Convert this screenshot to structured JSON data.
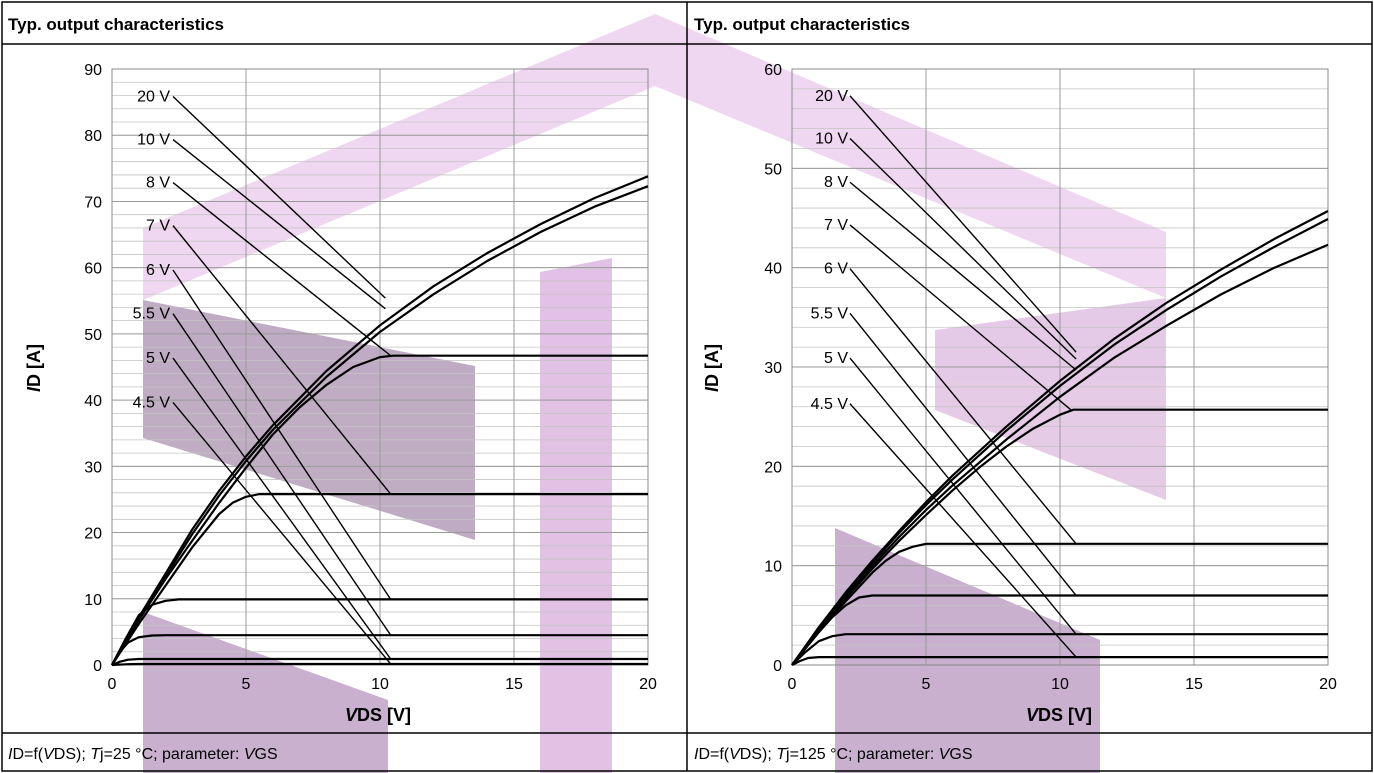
{
  "chart_data": [
    {
      "type": "line",
      "title": "Typ. output characteristics",
      "footer": {
        "main": "D=f(",
        "var": "DS",
        "mid": "); ",
        "tj": "j=25 °C; parameter: ",
        "param": "GS"
      },
      "xlabel": {
        "sym": "V",
        "sub": "DS",
        "unit": " [V]"
      },
      "ylabel": {
        "sym": "I",
        "sub": "D",
        "unit": " [A]"
      },
      "xlim": [
        0,
        20
      ],
      "ylim": [
        0,
        90
      ],
      "xticks": [
        "0",
        "5",
        "10",
        "15",
        "20"
      ],
      "yticks": [
        "0",
        "10",
        "20",
        "30",
        "40",
        "50",
        "60",
        "70",
        "80",
        "90"
      ],
      "xtick_values": [
        0,
        5,
        10,
        15,
        20
      ],
      "ytick_values": [
        0,
        10,
        20,
        30,
        40,
        50,
        60,
        70,
        80,
        90
      ],
      "grid": true,
      "series": [
        {
          "name": "20 V",
          "label_y": 86,
          "target": [
            10.2,
            55.4
          ],
          "x": [
            0,
            1,
            2,
            3,
            4,
            5,
            6,
            8,
            10,
            12,
            14,
            16,
            18,
            20
          ],
          "y": [
            0,
            7.2,
            13.8,
            20.5,
            26.3,
            31.5,
            36.2,
            44.4,
            51.3,
            57.2,
            62.2,
            66.6,
            70.5,
            73.8
          ]
        },
        {
          "name": "10 V",
          "label_y": 79.5,
          "target": [
            10.2,
            53.8
          ],
          "x": [
            0,
            1,
            2,
            3,
            4,
            5,
            6,
            8,
            10,
            12,
            14,
            16,
            18,
            20
          ],
          "y": [
            0,
            7.0,
            13.4,
            19.8,
            25.6,
            30.8,
            35.5,
            43.5,
            50.3,
            56.0,
            61.0,
            65.4,
            69.2,
            72.3
          ]
        },
        {
          "name": "8 V",
          "label_y": 73,
          "target": [
            10.4,
            46.7
          ],
          "x": [
            0,
            1,
            2,
            3,
            4,
            5,
            6,
            7,
            8,
            9,
            10,
            10.5,
            20
          ],
          "y": [
            0,
            6.8,
            13.0,
            18.8,
            24.5,
            29.8,
            34.8,
            38.9,
            42.3,
            45.0,
            46.5,
            46.7,
            46.7
          ]
        },
        {
          "name": "7 V",
          "label_y": 66.5,
          "target": [
            10.4,
            25.8
          ],
          "x": [
            0,
            1,
            2,
            3,
            4,
            4.5,
            5,
            5.5,
            20
          ],
          "y": [
            0,
            6.2,
            12.0,
            17.8,
            22.8,
            24.5,
            25.4,
            25.8,
            25.8
          ]
        },
        {
          "name": "6 V",
          "label_y": 59.8,
          "target": [
            10.4,
            9.9
          ],
          "x": [
            0,
            0.5,
            1,
            1.5,
            2,
            2.5,
            20
          ],
          "y": [
            0,
            3.9,
            7.5,
            9.1,
            9.7,
            9.9,
            9.9
          ]
        },
        {
          "name": "5.5 V",
          "label_y": 53.2,
          "target": [
            10.4,
            4.5
          ],
          "x": [
            0,
            0.3,
            0.6,
            1,
            1.5,
            2,
            20
          ],
          "y": [
            0,
            2.0,
            3.4,
            4.2,
            4.45,
            4.5,
            4.5
          ]
        },
        {
          "name": "5 V",
          "label_y": 46.5,
          "target": [
            10.4,
            0.9
          ],
          "x": [
            0,
            0.3,
            0.6,
            1,
            20
          ],
          "y": [
            0,
            0.5,
            0.8,
            0.9,
            0.9
          ]
        },
        {
          "name": "4.5 V",
          "label_y": 39.8,
          "target": [
            10.4,
            0.15
          ],
          "x": [
            0,
            0.5,
            1,
            20
          ],
          "y": [
            0,
            0.1,
            0.15,
            0.15
          ]
        }
      ]
    },
    {
      "type": "line",
      "title": "Typ. output characteristics",
      "footer": {
        "main": "D=f(",
        "var": "DS",
        "mid": "); ",
        "tj": "j=125 °C; parameter: ",
        "param": "GS"
      },
      "xlabel": {
        "sym": "V",
        "sub": "DS",
        "unit": " [V]"
      },
      "ylabel": {
        "sym": "I",
        "sub": "D",
        "unit": " [A]"
      },
      "xlim": [
        0,
        20
      ],
      "ylim": [
        0,
        60
      ],
      "xticks": [
        "0",
        "5",
        "10",
        "15",
        "20"
      ],
      "yticks": [
        "0",
        "10",
        "20",
        "30",
        "40",
        "50",
        "60"
      ],
      "xtick_values": [
        0,
        5,
        10,
        15,
        20
      ],
      "ytick_values": [
        0,
        10,
        20,
        30,
        40,
        50,
        60
      ],
      "grid": true,
      "series": [
        {
          "name": "20 V",
          "label_y": 57.4,
          "target": [
            10.6,
            31.5
          ],
          "x": [
            0,
            1,
            2,
            3,
            4,
            5,
            6,
            8,
            10,
            12,
            14,
            16,
            18,
            20
          ],
          "y": [
            0,
            3.8,
            7.3,
            10.5,
            13.5,
            16.4,
            19.1,
            24.0,
            28.6,
            32.8,
            36.5,
            39.8,
            42.9,
            45.7
          ]
        },
        {
          "name": "10 V",
          "label_y": 53.1,
          "target": [
            10.6,
            30.8
          ],
          "x": [
            0,
            1,
            2,
            3,
            4,
            5,
            6,
            8,
            10,
            12,
            14,
            16,
            18,
            20
          ],
          "y": [
            0,
            3.7,
            7.1,
            10.3,
            13.3,
            16.1,
            18.7,
            23.6,
            28.1,
            32.2,
            35.8,
            39.1,
            42.1,
            44.9
          ]
        },
        {
          "name": "8 V",
          "label_y": 48.7,
          "target": [
            10.6,
            29.7
          ],
          "x": [
            0,
            1,
            2,
            3,
            4,
            5,
            6,
            8,
            10,
            12,
            14,
            16,
            18,
            20
          ],
          "y": [
            0,
            3.6,
            6.9,
            10.0,
            12.9,
            15.6,
            18.1,
            22.7,
            27.0,
            30.9,
            34.2,
            37.3,
            40.0,
            42.3
          ]
        },
        {
          "name": "7 V",
          "label_y": 44.4,
          "target": [
            10.4,
            25.7
          ],
          "x": [
            0,
            1,
            2,
            3,
            4,
            5,
            6,
            7,
            8,
            9,
            10,
            10.5,
            20
          ],
          "y": [
            0,
            3.5,
            6.7,
            9.7,
            12.5,
            15.1,
            17.6,
            19.9,
            22.0,
            23.8,
            25.2,
            25.7,
            25.7
          ]
        },
        {
          "name": "6 V",
          "label_y": 40.0,
          "target": [
            10.6,
            12.2
          ],
          "x": [
            0,
            1,
            2,
            3,
            3.5,
            4,
            4.5,
            5,
            20
          ],
          "y": [
            0,
            3.3,
            6.4,
            9.3,
            10.5,
            11.4,
            11.9,
            12.2,
            12.2
          ]
        },
        {
          "name": "5.5 V",
          "label_y": 35.5,
          "target": [
            10.6,
            7.0
          ],
          "x": [
            0,
            0.5,
            1,
            1.5,
            2,
            2.5,
            3,
            20
          ],
          "y": [
            0,
            1.7,
            3.3,
            4.8,
            6.0,
            6.8,
            7.0,
            7.0
          ]
        },
        {
          "name": "5 V",
          "label_y": 31.0,
          "target": [
            10.6,
            3.1
          ],
          "x": [
            0,
            0.5,
            1,
            1.5,
            2,
            20
          ],
          "y": [
            0,
            1.3,
            2.4,
            2.9,
            3.1,
            3.1
          ]
        },
        {
          "name": "4.5 V",
          "label_y": 26.4,
          "target": [
            10.6,
            0.8
          ],
          "x": [
            0,
            0.3,
            0.6,
            1,
            20
          ],
          "y": [
            0,
            0.4,
            0.7,
            0.8,
            0.8
          ]
        }
      ]
    }
  ]
}
